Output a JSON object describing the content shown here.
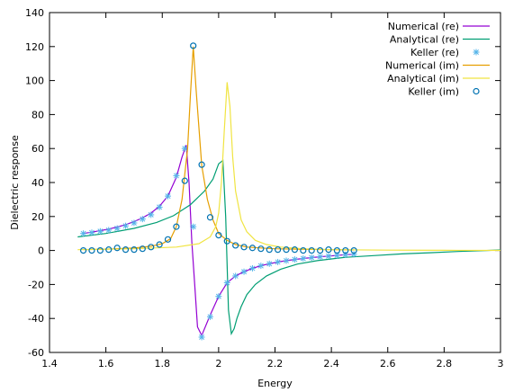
{
  "chart_data": {
    "type": "line",
    "title": "",
    "xlabel": "Energy",
    "ylabel": "Dielectric response",
    "xlim": [
      1.4,
      3.0
    ],
    "ylim": [
      -60,
      140
    ],
    "xticks": [
      1.4,
      1.6,
      1.8,
      2.0,
      2.2,
      2.4,
      2.6,
      2.8,
      3.0
    ],
    "xtick_labels": [
      "1.4",
      "1.6",
      "1.8",
      "2",
      "2.2",
      "2.4",
      "2.6",
      "2.8",
      "3"
    ],
    "yticks": [
      -60,
      -40,
      -20,
      0,
      20,
      40,
      60,
      80,
      100,
      120,
      140
    ],
    "ytick_labels": [
      "-60",
      "-40",
      "-20",
      "0",
      "20",
      "40",
      "60",
      "80",
      "100",
      "120",
      "140"
    ],
    "grid": false,
    "legend_position": "top-right",
    "series": [
      {
        "name": "Numerical (re)",
        "style": "line",
        "color": "#9400d3",
        "x": [
          1.52,
          1.55,
          1.58,
          1.61,
          1.64,
          1.67,
          1.7,
          1.73,
          1.76,
          1.79,
          1.82,
          1.85,
          1.87,
          1.885,
          1.895,
          1.905,
          1.915,
          1.925,
          1.94,
          1.97,
          2.0,
          2.03,
          2.06,
          2.09,
          2.12,
          2.15,
          2.18,
          2.21,
          2.24,
          2.27,
          2.3,
          2.33,
          2.36,
          2.39,
          2.42,
          2.45,
          2.48
        ],
        "y": [
          10.0,
          10.8,
          11.7,
          12.6,
          13.8,
          15.2,
          17.0,
          19.2,
          22.0,
          26.0,
          32.0,
          43.0,
          55.0,
          62.0,
          40.0,
          5.0,
          -20.0,
          -45.0,
          -50.0,
          -38.0,
          -27.0,
          -19.0,
          -15.0,
          -12.5,
          -10.5,
          -9.0,
          -7.8,
          -6.8,
          -6.0,
          -5.3,
          -4.7,
          -4.2,
          -3.7,
          -3.3,
          -2.9,
          -2.5,
          -2.2
        ]
      },
      {
        "name": "Analytical (re)",
        "style": "line",
        "color": "#009e73",
        "x": [
          1.5,
          1.6,
          1.7,
          1.78,
          1.84,
          1.9,
          1.95,
          1.98,
          2.0,
          2.015,
          2.025,
          2.035,
          2.045,
          2.055,
          2.065,
          2.08,
          2.1,
          2.13,
          2.17,
          2.22,
          2.28,
          2.35,
          2.45,
          2.55,
          2.65,
          2.75,
          2.85,
          2.95,
          3.0
        ],
        "y": [
          8.0,
          10.0,
          13.0,
          16.5,
          20.5,
          27.0,
          35.0,
          42.0,
          51.0,
          53.0,
          20.0,
          -35.0,
          -49.0,
          -46.0,
          -40.0,
          -33.0,
          -26.0,
          -20.0,
          -15.0,
          -11.0,
          -8.0,
          -6.0,
          -4.0,
          -3.0,
          -2.0,
          -1.3,
          -0.6,
          0.0,
          0.3
        ]
      },
      {
        "name": "Keller (re)",
        "style": "markers",
        "marker": "asterisk",
        "color": "#56b4e9",
        "x": [
          1.52,
          1.55,
          1.58,
          1.61,
          1.64,
          1.67,
          1.7,
          1.73,
          1.76,
          1.79,
          1.82,
          1.85,
          1.88,
          1.91,
          1.94,
          1.97,
          2.0,
          2.03,
          2.06,
          2.09,
          2.12,
          2.15,
          2.18,
          2.21,
          2.24,
          2.27,
          2.3,
          2.33,
          2.36,
          2.39,
          2.42,
          2.45,
          2.48
        ],
        "y": [
          10.0,
          10.5,
          11.3,
          12.0,
          13.0,
          14.5,
          16.2,
          18.5,
          21.0,
          25.5,
          32.0,
          44.0,
          60.0,
          14.0,
          -51.0,
          -39.0,
          -27.0,
          -19.0,
          -15.0,
          -12.5,
          -10.5,
          -9.0,
          -7.8,
          -6.8,
          -6.0,
          -5.3,
          -4.7,
          -4.2,
          -3.7,
          -3.3,
          -2.9,
          -2.5,
          -2.2
        ]
      },
      {
        "name": "Numerical (im)",
        "style": "line",
        "color": "#e69f00",
        "x": [
          1.52,
          1.6,
          1.7,
          1.76,
          1.8,
          1.83,
          1.85,
          1.87,
          1.89,
          1.9,
          1.91,
          1.92,
          1.94,
          1.96,
          1.98,
          2.0,
          2.03,
          2.06,
          2.1,
          2.15,
          2.2,
          2.3,
          2.4,
          2.48
        ],
        "y": [
          0.5,
          0.8,
          1.5,
          2.5,
          4.0,
          7.0,
          14.0,
          30.0,
          60.0,
          92.0,
          120.0,
          95.0,
          50.0,
          30.0,
          18.0,
          10.0,
          6.0,
          3.5,
          2.0,
          1.5,
          1.0,
          0.7,
          0.5,
          0.3
        ]
      },
      {
        "name": "Analytical (im)",
        "style": "line",
        "color": "#f0e442",
        "x": [
          1.5,
          1.7,
          1.85,
          1.93,
          1.97,
          1.99,
          2.0,
          2.01,
          2.02,
          2.03,
          2.04,
          2.05,
          2.06,
          2.08,
          2.1,
          2.13,
          2.17,
          2.22,
          2.3,
          2.4,
          2.6,
          2.8,
          3.0
        ],
        "y": [
          0.5,
          1.0,
          2.0,
          4.0,
          8.0,
          14.0,
          22.0,
          40.0,
          70.0,
          99.0,
          85.0,
          55.0,
          35.0,
          18.0,
          11.0,
          6.0,
          3.5,
          2.0,
          1.0,
          0.5,
          0.2,
          0.1,
          0.05
        ]
      },
      {
        "name": "Keller (im)",
        "style": "markers",
        "marker": "circle",
        "color": "#0072b2",
        "x": [
          1.52,
          1.55,
          1.58,
          1.61,
          1.64,
          1.67,
          1.7,
          1.73,
          1.76,
          1.79,
          1.82,
          1.85,
          1.88,
          1.91,
          1.94,
          1.97,
          2.0,
          2.03,
          2.06,
          2.09,
          2.12,
          2.15,
          2.18,
          2.21,
          2.24,
          2.27,
          2.3,
          2.33,
          2.36,
          2.39,
          2.42,
          2.45,
          2.48
        ],
        "y": [
          0.0,
          0.0,
          0.0,
          0.5,
          1.5,
          0.5,
          0.5,
          1.0,
          2.0,
          3.5,
          6.5,
          14.0,
          41.0,
          120.5,
          50.5,
          19.5,
          9.0,
          5.5,
          3.0,
          2.0,
          1.5,
          1.0,
          0.5,
          0.5,
          0.5,
          0.5,
          0.0,
          0.0,
          0.0,
          0.5,
          0.0,
          0.0,
          0.0
        ]
      }
    ]
  }
}
